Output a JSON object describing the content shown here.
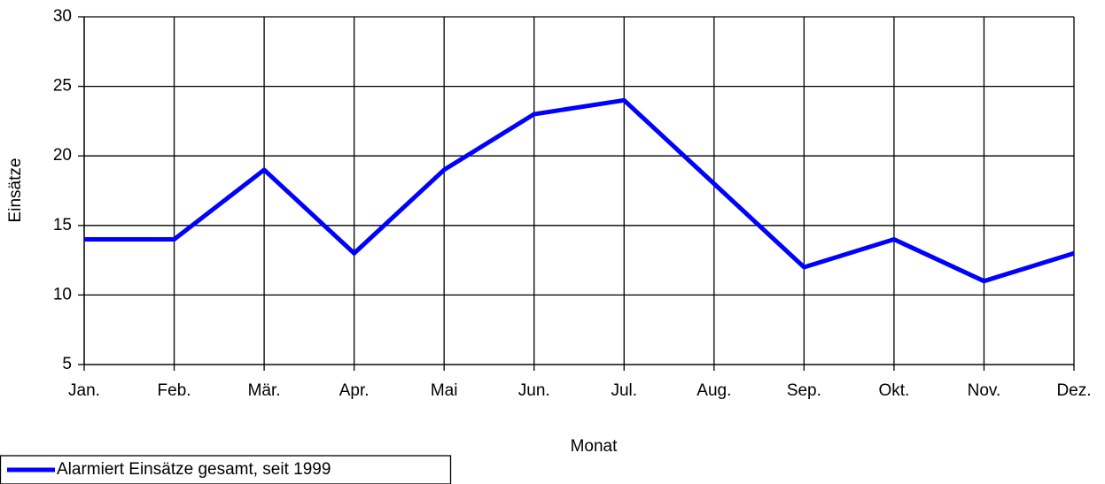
{
  "chart_data": {
    "type": "line",
    "x_label": "Monat",
    "y_label": "Einsätze",
    "categories": [
      "Jan.",
      "Feb.",
      "Mär.",
      "Apr.",
      "Mai",
      "Jun.",
      "Jul.",
      "Aug.",
      "Sep.",
      "Okt.",
      "Nov.",
      "Dez."
    ],
    "series": [
      {
        "name": "Alarmiert Einsätze gesamt, seit 1999",
        "color": "#0000ff",
        "values": [
          14,
          14,
          19,
          13,
          19,
          23,
          24,
          18,
          12,
          14,
          11,
          13
        ]
      }
    ],
    "ylim": [
      5,
      30
    ],
    "yticks": [
      5,
      10,
      15,
      20,
      25,
      30
    ],
    "grid": true,
    "legend": "bottom-left"
  }
}
